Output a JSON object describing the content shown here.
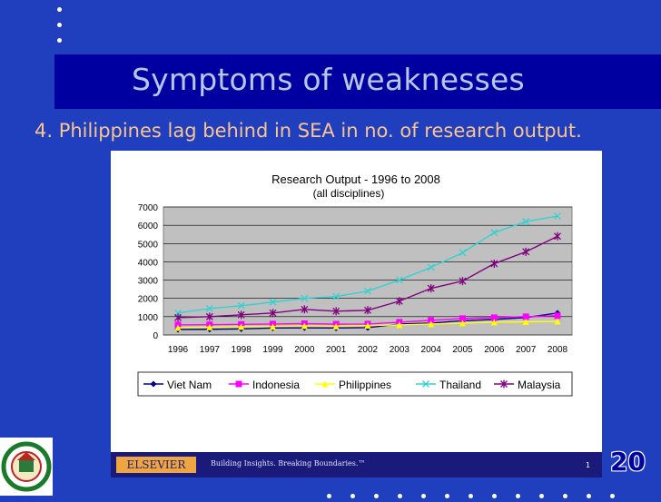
{
  "slide": {
    "title": "Symptoms of weaknesses",
    "subtitle": "4. Philippines lag behind in SEA in no. of research output.",
    "slide_number": "20",
    "footer": {
      "brand": "ELSEVIER",
      "tagline": "Building Insights. Breaking Boundaries.™",
      "page": "1"
    }
  },
  "chart_data": {
    "type": "line",
    "title": "Research Output - 1996 to 2008",
    "subtitle": "(all disciplines)",
    "xlabel": "",
    "ylabel": "",
    "categories": [
      "1996",
      "1997",
      "1998",
      "1999",
      "2000",
      "2001",
      "2002",
      "2003",
      "2004",
      "2005",
      "2006",
      "2007",
      "2008"
    ],
    "ylim": [
      0,
      7000
    ],
    "yticks": [
      "0",
      "1000",
      "2000",
      "3000",
      "4000",
      "5000",
      "6000",
      "7000"
    ],
    "grid": true,
    "legend_position": "bottom",
    "series": [
      {
        "name": "Viet Nam",
        "color": "#00008b",
        "marker": "diamond",
        "values": [
          300,
          310,
          330,
          380,
          390,
          380,
          400,
          600,
          650,
          780,
          850,
          950,
          1200
        ]
      },
      {
        "name": "Indonesia",
        "color": "#ff00ff",
        "marker": "square",
        "values": [
          550,
          560,
          580,
          600,
          620,
          590,
          600,
          700,
          800,
          900,
          950,
          1000,
          1050
        ]
      },
      {
        "name": "Philippines",
        "color": "#ffff00",
        "marker": "triangle",
        "values": [
          400,
          430,
          450,
          460,
          500,
          480,
          520,
          550,
          600,
          650,
          700,
          720,
          750
        ]
      },
      {
        "name": "Thailand",
        "color": "#33d1d1",
        "marker": "x",
        "values": [
          1200,
          1450,
          1600,
          1800,
          2000,
          2100,
          2400,
          3000,
          3700,
          4500,
          5600,
          6200,
          6500
        ]
      },
      {
        "name": "Malaysia",
        "color": "#800080",
        "marker": "star",
        "values": [
          950,
          1000,
          1100,
          1200,
          1400,
          1300,
          1350,
          1850,
          2550,
          2950,
          3900,
          4550,
          5400
        ]
      }
    ]
  }
}
